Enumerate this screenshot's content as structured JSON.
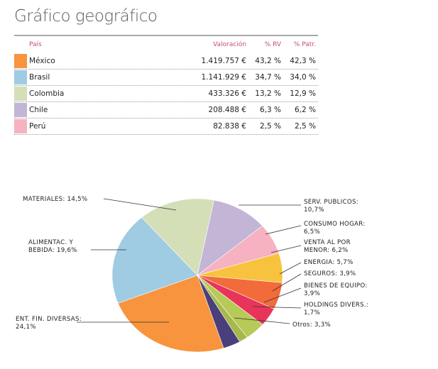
{
  "title": "Gráfico geográfico",
  "table": {
    "headers": {
      "country": "País",
      "valuation": "Valoración",
      "rv": "% RV",
      "patrimony": "% Patr."
    },
    "rows": [
      {
        "country": "México",
        "valuation": "1.419.757 €",
        "rv": "43,2 %",
        "patrimony": "42,3 %",
        "color": "#f7943d"
      },
      {
        "country": "Brasil",
        "valuation": "1.141.929 €",
        "rv": "34,7 %",
        "patrimony": "34,0 %",
        "color": "#9fcbe3"
      },
      {
        "country": "Colombia",
        "valuation": "433.326 €",
        "rv": "13,2 %",
        "patrimony": "12,9 %",
        "color": "#d4dfb8"
      },
      {
        "country": "Chile",
        "valuation": "208.488 €",
        "rv": "6,3 %",
        "patrimony": "6,2 %",
        "color": "#c2b5d6"
      },
      {
        "country": "Perú",
        "valuation": "82.838 €",
        "rv": "2,5 %",
        "patrimony": "2,5 %",
        "color": "#f6b2c0"
      }
    ]
  },
  "chart_data": {
    "type": "pie",
    "slices": [
      {
        "label": "ENT. FIN. DIVERSAS: 24,1%",
        "value": 24.1,
        "color": "#f7943d"
      },
      {
        "label": "ALIMENTAC. Y BEBIDA: 19,6%",
        "value": 19.6,
        "color": "#9fcbe3"
      },
      {
        "label": "MATERIALES: 14,5%",
        "value": 14.5,
        "color": "#d4dfb8"
      },
      {
        "label": "SERV. PUBLICOS: 10,7%",
        "value": 10.7,
        "color": "#c2b5d6"
      },
      {
        "label": "CONSUMO HOGAR: 6,5%",
        "value": 6.5,
        "color": "#f6b2c0"
      },
      {
        "label": "VENTA AL POR MENOR: 6,2%",
        "value": 6.2,
        "color": "#f7c23d"
      },
      {
        "label": "ENERGIA: 5,7%",
        "value": 5.7,
        "color": "#f26b3a"
      },
      {
        "label": "SEGUROS: 3,9%",
        "value": 3.9,
        "color": "#e8345a"
      },
      {
        "label": "BIENES DE EQUIPO: 3,9%",
        "value": 3.9,
        "color": "#b7c957"
      },
      {
        "label": "HOLDINGS DIVERS.: 1,7%",
        "value": 1.7,
        "color": "#a7b84a"
      },
      {
        "label": "Otros: 3,3%",
        "value": 3.3,
        "color": "#4a3f7a"
      }
    ],
    "labels": {
      "ent_fin": [
        "ENT. FIN. DIVERSAS:",
        "24,1%"
      ],
      "alimentac": [
        "ALIMENTAC. Y",
        "BEBIDA: 19,6%"
      ],
      "materiales": [
        "MATERIALES: 14,5%"
      ],
      "serv_publicos": [
        "SERV. PUBLICOS:",
        "10,7%"
      ],
      "consumo_hogar": [
        "CONSUMO HOGAR:",
        "6,5%"
      ],
      "venta": [
        "VENTA AL POR",
        "MENOR: 6,2%"
      ],
      "energia": [
        "ENERGIA: 5,7%"
      ],
      "seguros": [
        "SEGUROS: 3,9%"
      ],
      "bienes": [
        "BIENES DE EQUIPO:",
        "3,9%"
      ],
      "holdings": [
        "HOLDINGS DIVERS.:",
        "1,7%"
      ],
      "otros": [
        "Otros: 3,3%"
      ]
    }
  }
}
